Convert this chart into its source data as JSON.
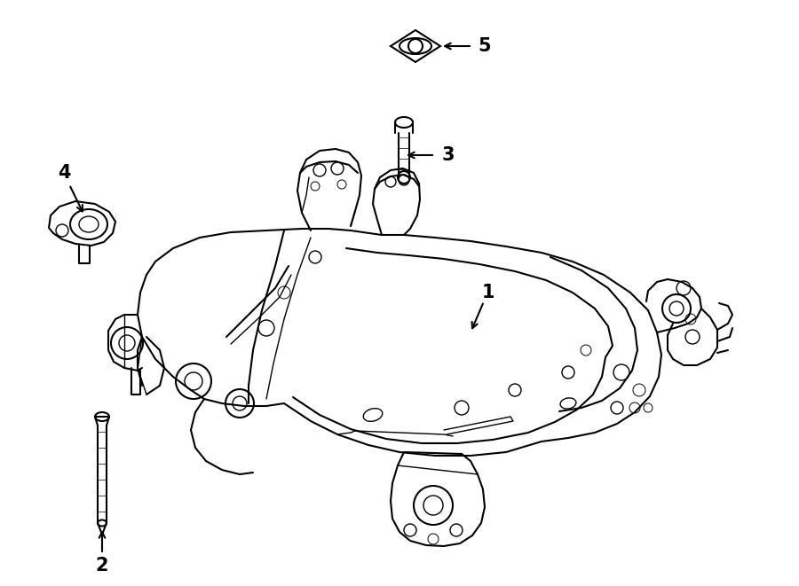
{
  "bg_color": "#ffffff",
  "line_color": "#000000",
  "fig_width": 9.0,
  "fig_height": 6.61,
  "dpi": 100,
  "lw_main": 1.5,
  "lw_detail": 1.0,
  "lw_thin": 0.7
}
